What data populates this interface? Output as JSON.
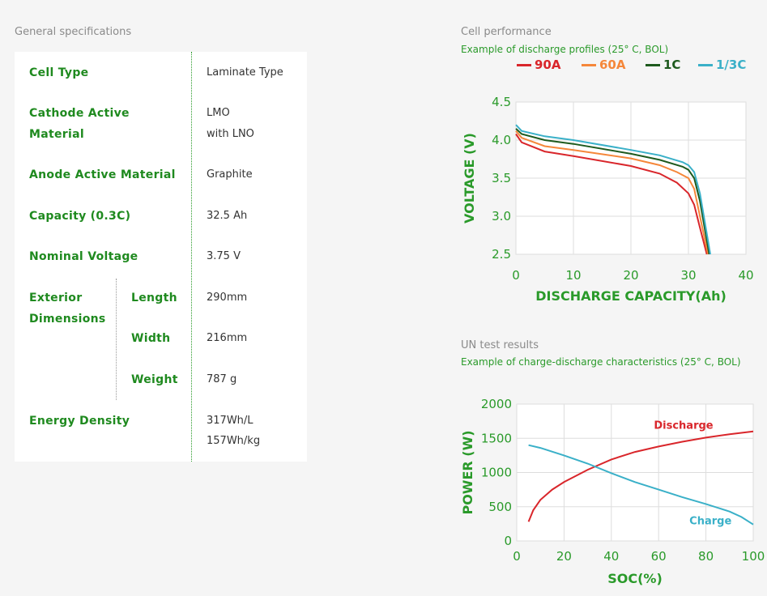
{
  "specs": {
    "title": "General specifications",
    "rows": [
      {
        "label": "Cell Type",
        "value": "Laminate Type"
      },
      {
        "label": "Cathode Active Material",
        "value": "LMO",
        "value2": "with LNO"
      },
      {
        "label": "Anode Active Material",
        "value": "Graphite"
      },
      {
        "label": "Capacity (0.3C)",
        "value": "32.5 Ah"
      },
      {
        "label": "Nominal Voltage",
        "value": "3.75 V"
      },
      {
        "label": "Exterior Dimensions",
        "sub": [
          {
            "label": "Length",
            "value": "290mm"
          },
          {
            "label": "Width",
            "value": "216mm"
          },
          {
            "label": "Weight",
            "value": "787 g"
          }
        ]
      },
      {
        "label": "Energy Density",
        "value": "317Wh/L",
        "value2": "157Wh/kg"
      }
    ]
  },
  "chart_data": [
    {
      "type": "line",
      "section": "Cell performance",
      "title": "Example of discharge profiles (25° C, BOL)",
      "xlabel": "DISCHARGE CAPACITY(Ah)",
      "ylabel": "VOLTAGE (V)",
      "xlim": [
        0,
        40
      ],
      "ylim": [
        2.5,
        4.5
      ],
      "xticks": [
        "0",
        "10",
        "20",
        "30",
        "40"
      ],
      "yticks": [
        "2.5",
        "3.0",
        "3.5",
        "4.0",
        "4.5"
      ],
      "grid": true,
      "legend": "top",
      "series": [
        {
          "name": "90A",
          "color": "#d9262b",
          "points": [
            [
              0,
              4.08
            ],
            [
              1,
              3.97
            ],
            [
              5,
              3.85
            ],
            [
              10,
              3.79
            ],
            [
              20,
              3.66
            ],
            [
              25,
              3.56
            ],
            [
              28,
              3.44
            ],
            [
              30,
              3.3
            ],
            [
              31,
              3.15
            ],
            [
              32,
              2.85
            ],
            [
              33.2,
              2.5
            ]
          ]
        },
        {
          "name": "60A",
          "color": "#f5873a",
          "points": [
            [
              0,
              4.12
            ],
            [
              1,
              4.03
            ],
            [
              5,
              3.92
            ],
            [
              10,
              3.87
            ],
            [
              20,
              3.76
            ],
            [
              25,
              3.67
            ],
            [
              28,
              3.58
            ],
            [
              30,
              3.5
            ],
            [
              31,
              3.36
            ],
            [
              32,
              3.0
            ],
            [
              33.4,
              2.5
            ]
          ]
        },
        {
          "name": "1C",
          "color": "#1e5a1e",
          "points": [
            [
              0,
              4.15
            ],
            [
              1,
              4.08
            ],
            [
              5,
              4.0
            ],
            [
              10,
              3.95
            ],
            [
              20,
              3.82
            ],
            [
              25,
              3.74
            ],
            [
              29,
              3.65
            ],
            [
              30,
              3.61
            ],
            [
              31,
              3.5
            ],
            [
              32,
              3.2
            ],
            [
              33.6,
              2.5
            ]
          ]
        },
        {
          "name": "1/3C",
          "color": "#3ab0c8",
          "points": [
            [
              0,
              4.2
            ],
            [
              1,
              4.12
            ],
            [
              5,
              4.05
            ],
            [
              10,
              4.0
            ],
            [
              20,
              3.87
            ],
            [
              25,
              3.8
            ],
            [
              29,
              3.71
            ],
            [
              30,
              3.67
            ],
            [
              31,
              3.58
            ],
            [
              32,
              3.3
            ],
            [
              33.8,
              2.5
            ]
          ]
        }
      ]
    },
    {
      "type": "line",
      "section": "UN test results",
      "title": "Example of charge-discharge characteristics (25° C, BOL)",
      "xlabel": "SOC(%)",
      "ylabel": "POWER (W)",
      "xlim": [
        0,
        100
      ],
      "ylim": [
        0,
        2000
      ],
      "xticks": [
        "0",
        "20",
        "40",
        "60",
        "80",
        "100"
      ],
      "yticks": [
        "0",
        "500",
        "1000",
        "1500",
        "2000"
      ],
      "grid": true,
      "legend": "inline",
      "series": [
        {
          "name": "Discharge",
          "color": "#d9262b",
          "points": [
            [
              5,
              280
            ],
            [
              7,
              450
            ],
            [
              10,
              600
            ],
            [
              15,
              750
            ],
            [
              20,
              860
            ],
            [
              30,
              1040
            ],
            [
              40,
              1190
            ],
            [
              50,
              1300
            ],
            [
              60,
              1380
            ],
            [
              70,
              1450
            ],
            [
              80,
              1510
            ],
            [
              90,
              1560
            ],
            [
              100,
              1600
            ]
          ]
        },
        {
          "name": "Charge",
          "color": "#3ab0c8",
          "points": [
            [
              5,
              1400
            ],
            [
              10,
              1360
            ],
            [
              20,
              1250
            ],
            [
              30,
              1130
            ],
            [
              40,
              990
            ],
            [
              50,
              860
            ],
            [
              60,
              750
            ],
            [
              70,
              640
            ],
            [
              80,
              540
            ],
            [
              90,
              430
            ],
            [
              95,
              350
            ],
            [
              100,
              240
            ]
          ]
        }
      ]
    }
  ]
}
